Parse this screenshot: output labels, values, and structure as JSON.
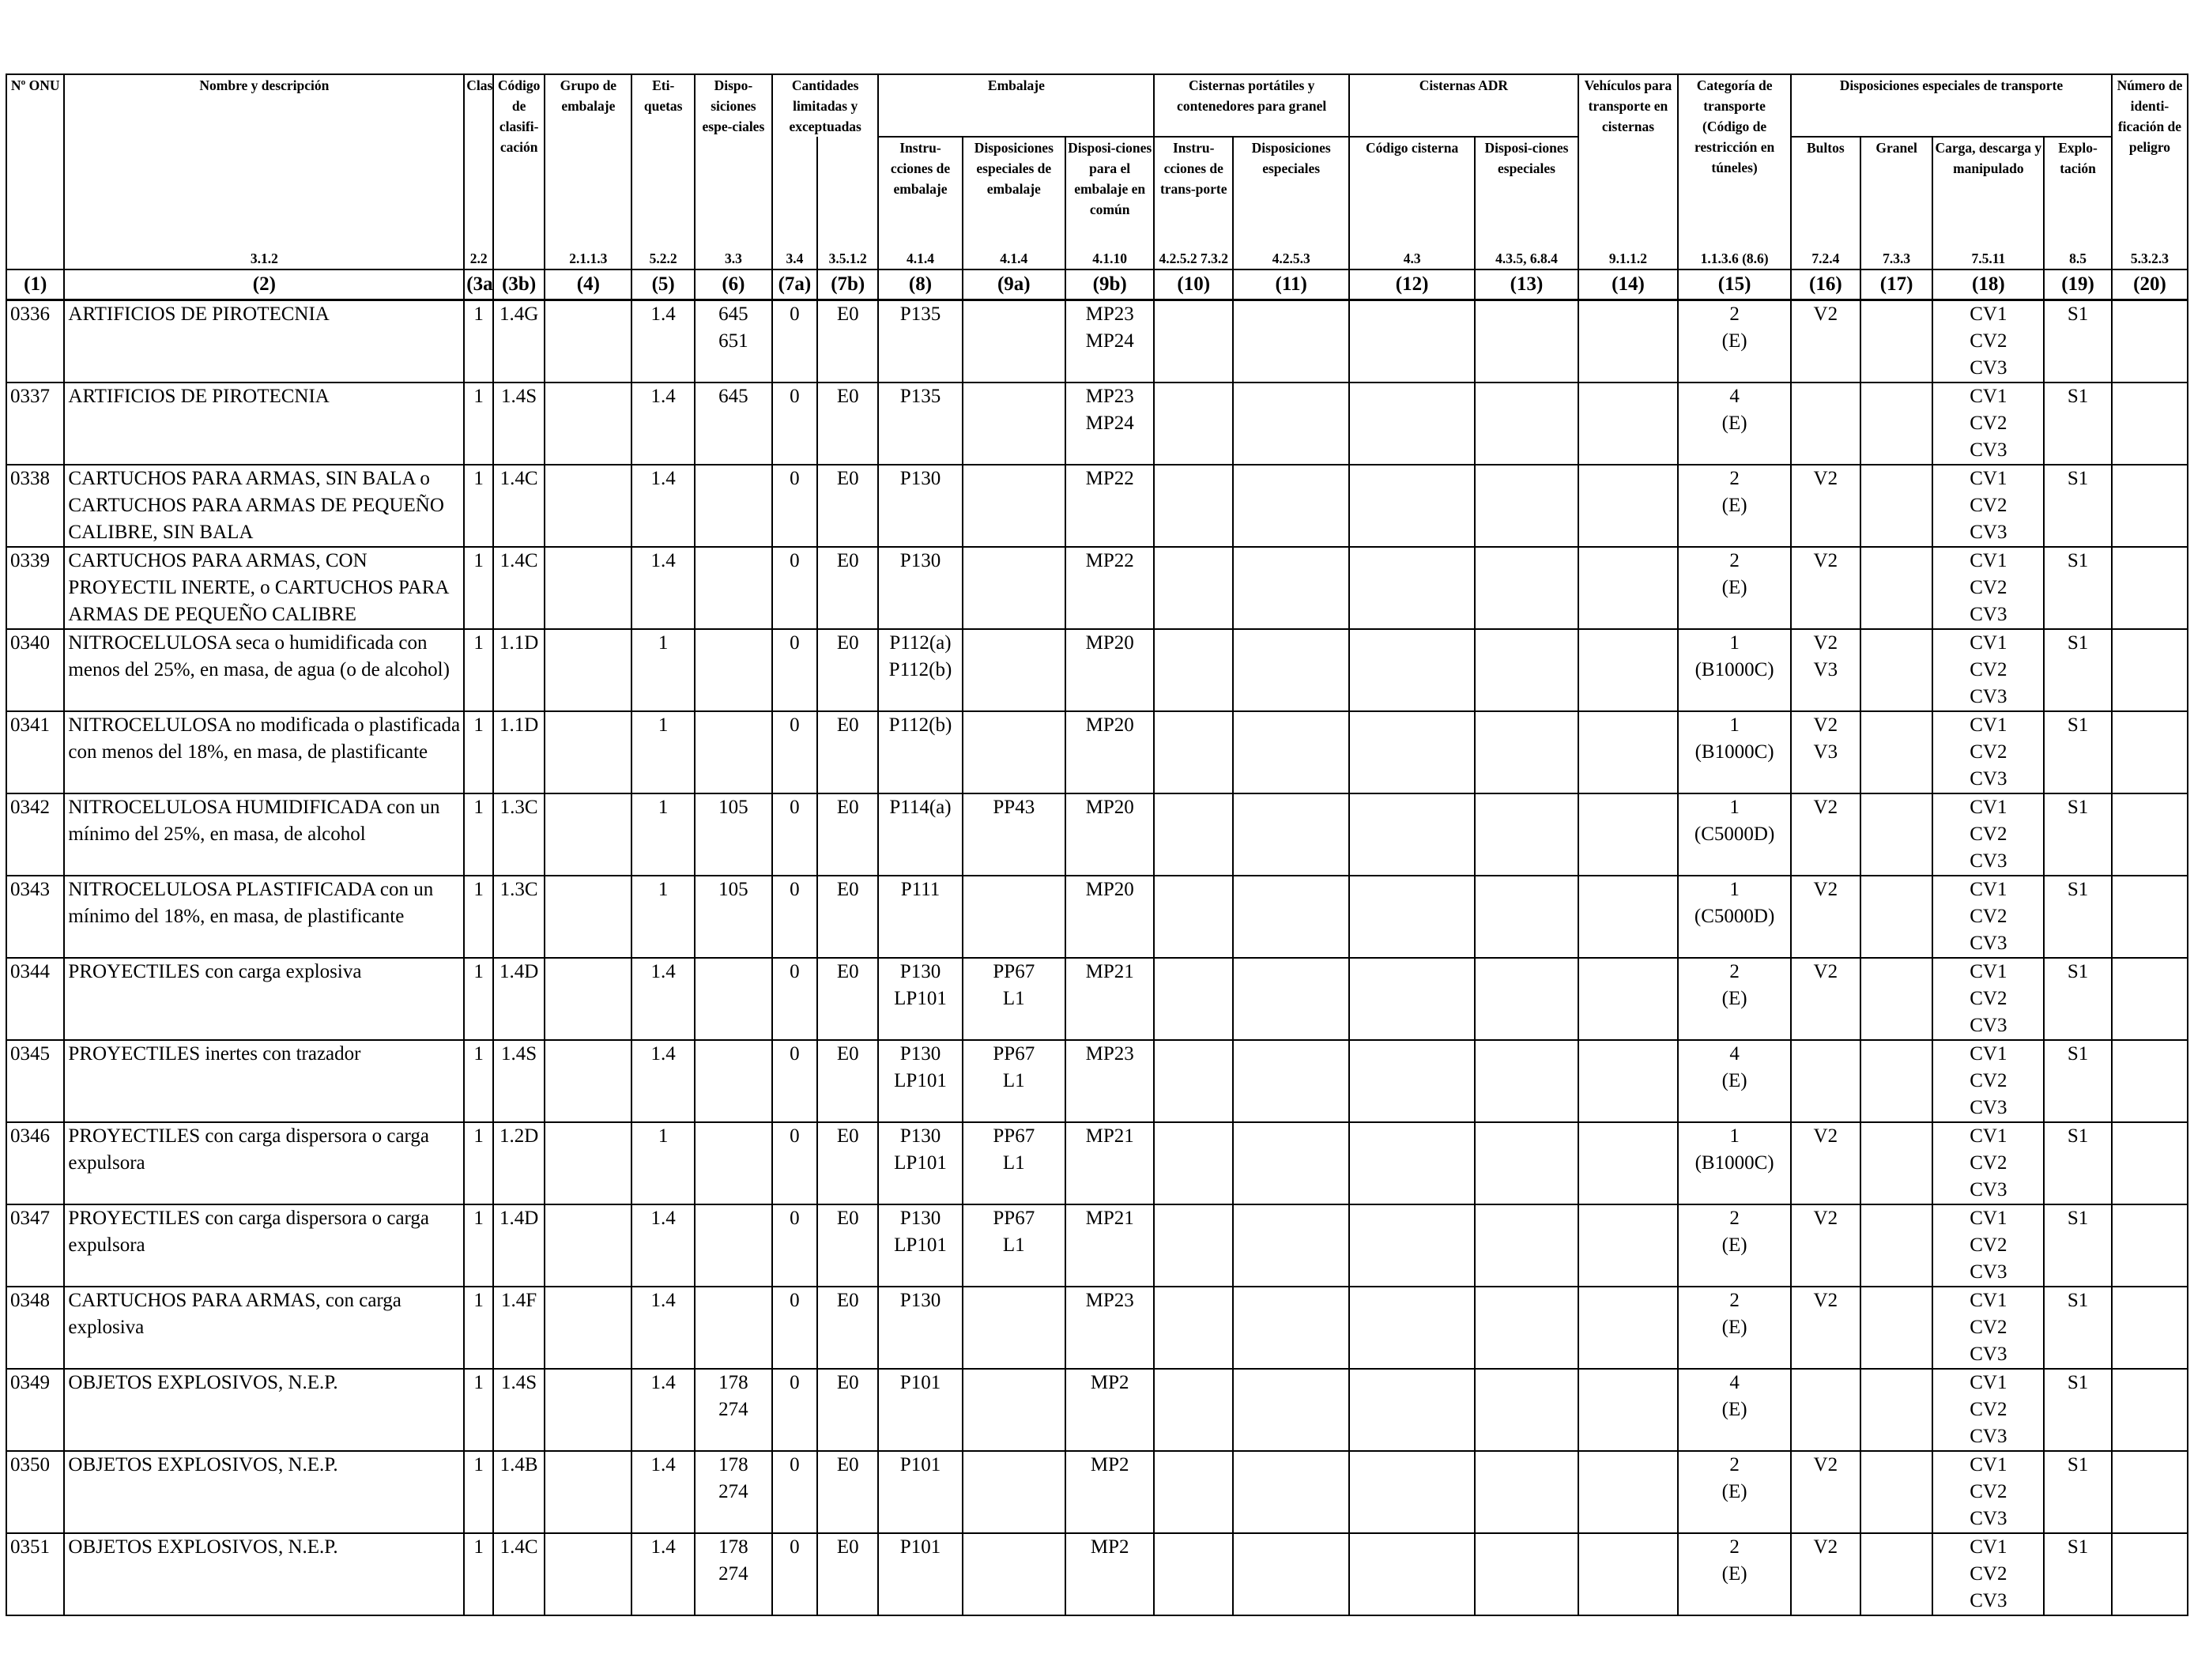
{
  "header": {
    "onu": "Nº ONU",
    "nombre": "Nombre y descripción",
    "clase": "Clase",
    "codigo_clasif": "Código de clasifi-cación",
    "grupo_embalaje": "Grupo de embalaje",
    "etiquetas": "Eti-quetas",
    "disp_especiales": "Dispo-siciones espe-ciales",
    "cantidades": "Cantidades limitadas y exceptuadas",
    "embalaje": "Embalaje",
    "instr_embalaje": "Instru-cciones de embalaje",
    "disp_esp_embalaje": "Disposiciones especiales de embalaje",
    "disp_comun": "Disposi-ciones para el embalaje en común",
    "cisternas_portatiles": "Cisternas portátiles y contenedores para granel",
    "instr_transporte": "Instru-cciones de trans-porte",
    "disp_esp_cist": "Disposiciones especiales",
    "cisternas_adr": "Cisternas ADR",
    "codigo_cisterna": "Código cisterna",
    "disp_esp_adr": "Disposi-ciones especiales",
    "vehiculos": "Vehículos para transporte en cisternas",
    "categoria": "Categoría de transporte (Código de restricción en túneles)",
    "disp_transporte": "Disposiciones especiales de transporte",
    "bultos": "Bultos",
    "granel": "Granel",
    "carga": "Carga, descarga y manipulado",
    "explotacion": "Explo-tación",
    "numero_peligro": "Número de identi-ficación de peligro"
  },
  "refs": {
    "nombre": "3.1.2",
    "clase": "2.2",
    "grupo": "2.1.1.3",
    "etiquetas": "5.2.2",
    "disp": "3.3",
    "c7a": "3.4",
    "c7b": "3.5.1.2",
    "c8": "4.1.4",
    "c9a": "4.1.4",
    "c9b": "4.1.10",
    "c10": "4.2.5.2 7.3.2",
    "c11": "4.2.5.3",
    "c12": "4.3",
    "c13": "4.3.5, 6.8.4",
    "c14": "9.1.1.2",
    "c15": "1.1.3.6 (8.6)",
    "c16": "7.2.4",
    "c17": "7.3.3",
    "c18": "7.5.11",
    "c19": "8.5",
    "c20": "5.3.2.3"
  },
  "colnums": [
    "(1)",
    "(2)",
    "(3a)",
    "(3b)",
    "(4)",
    "(5)",
    "(6)",
    "(7a)",
    "(7b)",
    "(8)",
    "(9a)",
    "(9b)",
    "(10)",
    "(11)",
    "(12)",
    "(13)",
    "(14)",
    "(15)",
    "(16)",
    "(17)",
    "(18)",
    "(19)",
    "(20)"
  ],
  "rows": [
    {
      "onu": "0336",
      "name": "ARTIFICIOS DE PIROTECNIA",
      "c3a": "1",
      "c3b": "1.4G",
      "c4": "",
      "c5": "1.4",
      "c6": "645\n651",
      "c7a": "0",
      "c7b": "E0",
      "c8": "P135",
      "c9a": "",
      "c9b": "MP23\nMP24",
      "c10": "",
      "c11": "",
      "c12": "",
      "c13": "",
      "c14": "",
      "c15": "2\n(E)",
      "c16": "V2",
      "c17": "",
      "c18": "CV1\nCV2\nCV3",
      "c19": "S1",
      "c20": ""
    },
    {
      "onu": "0337",
      "name": "ARTIFICIOS DE PIROTECNIA",
      "c3a": "1",
      "c3b": "1.4S",
      "c4": "",
      "c5": "1.4",
      "c6": "645",
      "c7a": "0",
      "c7b": "E0",
      "c8": "P135",
      "c9a": "",
      "c9b": "MP23\nMP24",
      "c10": "",
      "c11": "",
      "c12": "",
      "c13": "",
      "c14": "",
      "c15": "4\n(E)",
      "c16": "",
      "c17": "",
      "c18": "CV1\nCV2\nCV3",
      "c19": "S1",
      "c20": ""
    },
    {
      "onu": "0338",
      "name": "CARTUCHOS PARA ARMAS, SIN BALA o CARTUCHOS PARA ARMAS DE PEQUEÑO CALIBRE, SIN BALA",
      "c3a": "1",
      "c3b": "1.4C",
      "c4": "",
      "c5": "1.4",
      "c6": "",
      "c7a": "0",
      "c7b": "E0",
      "c8": "P130",
      "c9a": "",
      "c9b": "MP22",
      "c10": "",
      "c11": "",
      "c12": "",
      "c13": "",
      "c14": "",
      "c15": "2\n(E)",
      "c16": "V2",
      "c17": "",
      "c18": "CV1\nCV2\nCV3",
      "c19": "S1",
      "c20": ""
    },
    {
      "onu": "0339",
      "name": "CARTUCHOS PARA ARMAS, CON PROYECTIL INERTE, o CARTUCHOS PARA ARMAS DE PEQUEÑO CALIBRE",
      "c3a": "1",
      "c3b": "1.4C",
      "c4": "",
      "c5": "1.4",
      "c6": "",
      "c7a": "0",
      "c7b": "E0",
      "c8": "P130",
      "c9a": "",
      "c9b": "MP22",
      "c10": "",
      "c11": "",
      "c12": "",
      "c13": "",
      "c14": "",
      "c15": "2\n(E)",
      "c16": "V2",
      "c17": "",
      "c18": "CV1\nCV2\nCV3",
      "c19": "S1",
      "c20": ""
    },
    {
      "onu": "0340",
      "name": "NITROCELULOSA seca o humidificada con menos del 25%, en masa, de agua (o de alcohol)",
      "c3a": "1",
      "c3b": "1.1D",
      "c4": "",
      "c5": "1",
      "c6": "",
      "c7a": "0",
      "c7b": "E0",
      "c8": "P112(a)\nP112(b)",
      "c9a": "",
      "c9b": "MP20",
      "c10": "",
      "c11": "",
      "c12": "",
      "c13": "",
      "c14": "",
      "c15": "1\n(B1000C)",
      "c16": "V2\nV3",
      "c17": "",
      "c18": "CV1\nCV2\nCV3",
      "c19": "S1",
      "c20": ""
    },
    {
      "onu": "0341",
      "name": "NITROCELULOSA no modificada o plastificada con menos del 18%, en masa, de plastificante",
      "c3a": "1",
      "c3b": "1.1D",
      "c4": "",
      "c5": "1",
      "c6": "",
      "c7a": "0",
      "c7b": "E0",
      "c8": "P112(b)",
      "c9a": "",
      "c9b": "MP20",
      "c10": "",
      "c11": "",
      "c12": "",
      "c13": "",
      "c14": "",
      "c15": "1\n(B1000C)",
      "c16": "V2\nV3",
      "c17": "",
      "c18": "CV1\nCV2\nCV3",
      "c19": "S1",
      "c20": ""
    },
    {
      "onu": "0342",
      "name": "NITROCELULOSA HUMIDIFICADA con un mínimo del 25%, en masa, de alcohol",
      "c3a": "1",
      "c3b": "1.3C",
      "c4": "",
      "c5": "1",
      "c6": "105",
      "c7a": "0",
      "c7b": "E0",
      "c8": "P114(a)",
      "c9a": "PP43",
      "c9b": "MP20",
      "c10": "",
      "c11": "",
      "c12": "",
      "c13": "",
      "c14": "",
      "c15": "1\n(C5000D)",
      "c16": "V2",
      "c17": "",
      "c18": "CV1\nCV2\nCV3",
      "c19": "S1",
      "c20": ""
    },
    {
      "onu": "0343",
      "name": "NITROCELULOSA PLASTIFICADA con un mínimo del 18%, en masa, de plastificante",
      "c3a": "1",
      "c3b": "1.3C",
      "c4": "",
      "c5": "1",
      "c6": "105",
      "c7a": "0",
      "c7b": "E0",
      "c8": "P111",
      "c9a": "",
      "c9b": "MP20",
      "c10": "",
      "c11": "",
      "c12": "",
      "c13": "",
      "c14": "",
      "c15": "1\n(C5000D)",
      "c16": "V2",
      "c17": "",
      "c18": "CV1\nCV2\nCV3",
      "c19": "S1",
      "c20": ""
    },
    {
      "onu": "0344",
      "name": "PROYECTILES con carga explosiva",
      "c3a": "1",
      "c3b": "1.4D",
      "c4": "",
      "c5": "1.4",
      "c6": "",
      "c7a": "0",
      "c7b": "E0",
      "c8": "P130\nLP101",
      "c9a": "PP67\nL1",
      "c9b": "MP21",
      "c10": "",
      "c11": "",
      "c12": "",
      "c13": "",
      "c14": "",
      "c15": "2\n(E)",
      "c16": "V2",
      "c17": "",
      "c18": "CV1\nCV2\nCV3",
      "c19": "S1",
      "c20": ""
    },
    {
      "onu": "0345",
      "name": "PROYECTILES inertes con trazador",
      "c3a": "1",
      "c3b": "1.4S",
      "c4": "",
      "c5": "1.4",
      "c6": "",
      "c7a": "0",
      "c7b": "E0",
      "c8": "P130\nLP101",
      "c9a": "PP67\nL1",
      "c9b": "MP23",
      "c10": "",
      "c11": "",
      "c12": "",
      "c13": "",
      "c14": "",
      "c15": "4\n(E)",
      "c16": "",
      "c17": "",
      "c18": "CV1\nCV2\nCV3",
      "c19": "S1",
      "c20": ""
    },
    {
      "onu": "0346",
      "name": "PROYECTILES con carga dispersora o carga expulsora",
      "c3a": "1",
      "c3b": "1.2D",
      "c4": "",
      "c5": "1",
      "c6": "",
      "c7a": "0",
      "c7b": "E0",
      "c8": "P130\nLP101",
      "c9a": "PP67\nL1",
      "c9b": "MP21",
      "c10": "",
      "c11": "",
      "c12": "",
      "c13": "",
      "c14": "",
      "c15": "1\n(B1000C)",
      "c16": "V2",
      "c17": "",
      "c18": "CV1\nCV2\nCV3",
      "c19": "S1",
      "c20": ""
    },
    {
      "onu": "0347",
      "name": "PROYECTILES con carga dispersora o carga expulsora",
      "c3a": "1",
      "c3b": "1.4D",
      "c4": "",
      "c5": "1.4",
      "c6": "",
      "c7a": "0",
      "c7b": "E0",
      "c8": "P130\nLP101",
      "c9a": "PP67\nL1",
      "c9b": "MP21",
      "c10": "",
      "c11": "",
      "c12": "",
      "c13": "",
      "c14": "",
      "c15": "2\n(E)",
      "c16": "V2",
      "c17": "",
      "c18": "CV1\nCV2\nCV3",
      "c19": "S1",
      "c20": ""
    },
    {
      "onu": "0348",
      "name": "CARTUCHOS PARA ARMAS, con carga explosiva",
      "c3a": "1",
      "c3b": "1.4F",
      "c4": "",
      "c5": "1.4",
      "c6": "",
      "c7a": "0",
      "c7b": "E0",
      "c8": "P130",
      "c9a": "",
      "c9b": "MP23",
      "c10": "",
      "c11": "",
      "c12": "",
      "c13": "",
      "c14": "",
      "c15": "2\n(E)",
      "c16": "V2",
      "c17": "",
      "c18": "CV1\nCV2\nCV3",
      "c19": "S1",
      "c20": ""
    },
    {
      "onu": "0349",
      "name": "OBJETOS EXPLOSIVOS, N.E.P.",
      "c3a": "1",
      "c3b": "1.4S",
      "c4": "",
      "c5": "1.4",
      "c6": "178\n274",
      "c7a": "0",
      "c7b": "E0",
      "c8": "P101",
      "c9a": "",
      "c9b": "MP2",
      "c10": "",
      "c11": "",
      "c12": "",
      "c13": "",
      "c14": "",
      "c15": "4\n(E)",
      "c16": "",
      "c17": "",
      "c18": "CV1\nCV2\nCV3",
      "c19": "S1",
      "c20": ""
    },
    {
      "onu": "0350",
      "name": "OBJETOS EXPLOSIVOS, N.E.P.",
      "c3a": "1",
      "c3b": "1.4B",
      "c4": "",
      "c5": "1.4",
      "c6": "178\n274",
      "c7a": "0",
      "c7b": "E0",
      "c8": "P101",
      "c9a": "",
      "c9b": "MP2",
      "c10": "",
      "c11": "",
      "c12": "",
      "c13": "",
      "c14": "",
      "c15": "2\n(E)",
      "c16": "V2",
      "c17": "",
      "c18": "CV1\nCV2\nCV3",
      "c19": "S1",
      "c20": ""
    },
    {
      "onu": "0351",
      "name": "OBJETOS EXPLOSIVOS, N.E.P.",
      "c3a": "1",
      "c3b": "1.4C",
      "c4": "",
      "c5": "1.4",
      "c6": "178\n274",
      "c7a": "0",
      "c7b": "E0",
      "c8": "P101",
      "c9a": "",
      "c9b": "MP2",
      "c10": "",
      "c11": "",
      "c12": "",
      "c13": "",
      "c14": "",
      "c15": "2\n(E)",
      "c16": "V2",
      "c17": "",
      "c18": "CV1\nCV2\nCV3",
      "c19": "S1",
      "c20": ""
    }
  ]
}
